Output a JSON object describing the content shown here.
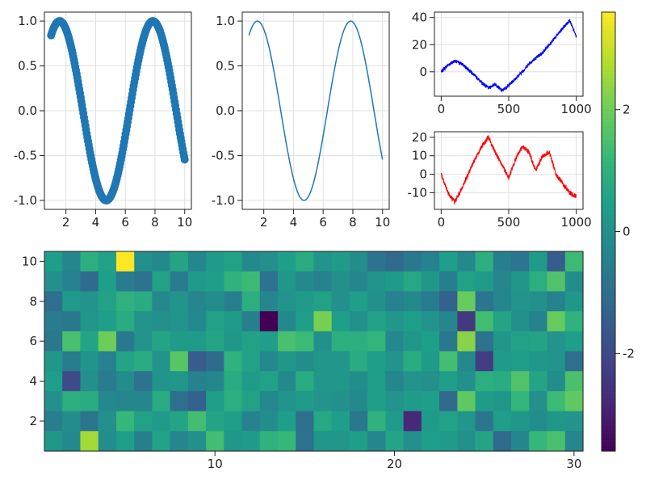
{
  "colors": {
    "scatter": "#1f77b4",
    "line": "#1f77b4",
    "walk_top": "#0000ff",
    "walk_bottom": "#ff0000",
    "grid": "#e0e0e0",
    "colormap": "viridis"
  },
  "chart_data": [
    {
      "id": "scatter-sine",
      "type": "scatter",
      "function": "sin(x)",
      "x_range": [
        1,
        10
      ],
      "n_points": 200,
      "xlim": [
        0.55,
        10.45
      ],
      "ylim": [
        -1.1,
        1.1
      ],
      "xticks": [
        2,
        4,
        6,
        8,
        10
      ],
      "yticks": [
        -1.0,
        -0.5,
        0.0,
        0.5,
        1.0
      ],
      "xtick_labels": [
        "2",
        "4",
        "6",
        "8",
        "10"
      ],
      "ytick_labels": [
        "-1.0",
        "-0.5",
        "0.0",
        "0.5",
        "1.0"
      ],
      "grid": true
    },
    {
      "id": "line-sine",
      "type": "line",
      "function": "sin(x)",
      "x_range": [
        1,
        10
      ],
      "n_points": 200,
      "xlim": [
        0.55,
        10.45
      ],
      "ylim": [
        -1.1,
        1.1
      ],
      "xticks": [
        2,
        4,
        6,
        8,
        10
      ],
      "yticks": [
        -1.0,
        -0.5,
        0.0,
        0.5,
        1.0
      ],
      "xtick_labels": [
        "2",
        "4",
        "6",
        "8",
        "10"
      ],
      "ytick_labels": [
        "-1.0",
        "-0.5",
        "0.0",
        "0.5",
        "1.0"
      ],
      "grid": true
    },
    {
      "id": "random-walk-blue",
      "type": "line",
      "n_points": 1000,
      "x": [
        0,
        50,
        100,
        150,
        200,
        250,
        300,
        350,
        400,
        450,
        500,
        550,
        600,
        650,
        700,
        750,
        800,
        850,
        900,
        950,
        1000
      ],
      "y": [
        0,
        5,
        8,
        6,
        2,
        -3,
        -8,
        -12,
        -9,
        -14,
        -10,
        -5,
        0,
        6,
        10,
        14,
        20,
        26,
        32,
        38,
        26
      ],
      "xlim": [
        -50,
        1050
      ],
      "ylim": [
        -18,
        44
      ],
      "xticks": [
        0,
        500,
        1000
      ],
      "yticks": [
        0,
        20,
        40
      ],
      "xtick_labels": [
        "0",
        "500",
        "1000"
      ],
      "ytick_labels": [
        "0",
        "20",
        "40"
      ],
      "grid": true
    },
    {
      "id": "random-walk-red",
      "type": "line",
      "n_points": 1000,
      "x": [
        0,
        50,
        100,
        150,
        200,
        250,
        300,
        350,
        400,
        450,
        500,
        550,
        600,
        650,
        700,
        750,
        800,
        850,
        900,
        950,
        1000
      ],
      "y": [
        0,
        -10,
        -15,
        -8,
        0,
        8,
        15,
        20,
        12,
        5,
        -2,
        8,
        15,
        12,
        2,
        10,
        12,
        0,
        -5,
        -10,
        -12
      ],
      "xlim": [
        -50,
        1050
      ],
      "ylim": [
        -19,
        23
      ],
      "xticks": [
        0,
        500,
        1000
      ],
      "yticks": [
        -10,
        0,
        10,
        20
      ],
      "xtick_labels": [
        "0",
        "500",
        "1000"
      ],
      "ytick_labels": [
        "-10",
        "0",
        "10",
        "20"
      ],
      "grid": true
    },
    {
      "id": "heatmap",
      "type": "heatmap",
      "n_cols": 30,
      "n_rows": 10,
      "xlim": [
        0.5,
        30.5
      ],
      "ylim": [
        0.5,
        10.5
      ],
      "xticks": [
        10,
        20,
        30
      ],
      "yticks": [
        2,
        4,
        6,
        8,
        10
      ],
      "xtick_labels": [
        "10",
        "20",
        "30"
      ],
      "ytick_labels": [
        "2",
        "4",
        "6",
        "8",
        "10"
      ],
      "value_range": [
        -3.6,
        3.6
      ],
      "values_rows_top_to_bottom": [
        [
          0.4,
          -0.3,
          0.9,
          0.5,
          3.6,
          0.0,
          -0.2,
          0.6,
          -0.3,
          0.3,
          0.5,
          -0.2,
          0.0,
          0.4,
          0.8,
          0.1,
          0.3,
          -0.1,
          -0.9,
          -1.1,
          -0.7,
          -0.4,
          0.4,
          -0.2,
          0.9,
          -0.5,
          -0.8,
          0.3,
          -1.5,
          1.3
        ],
        [
          0.0,
          -0.4,
          -1.1,
          0.4,
          -0.6,
          -0.9,
          0.5,
          -0.6,
          0.3,
          0.4,
          1.0,
          1.3,
          -0.9,
          0.2,
          -0.2,
          -0.4,
          0.0,
          -0.3,
          0.1,
          0.3,
          0.7,
          0.2,
          -0.5,
          0.5,
          0.3,
          -0.3,
          0.2,
          0.9,
          1.6,
          -0.1
        ],
        [
          -1.0,
          0.3,
          0.1,
          0.5,
          1.0,
          0.8,
          -0.2,
          0.1,
          -0.3,
          -0.1,
          -0.5,
          0.9,
          -0.3,
          0.1,
          0.3,
          0.5,
          0.0,
          0.4,
          0.0,
          -0.4,
          -0.2,
          -0.6,
          -1.4,
          1.9,
          -0.8,
          -0.3,
          0.1,
          0.0,
          -0.4,
          0.2
        ],
        [
          -0.6,
          -0.7,
          0.2,
          0.4,
          0.8,
          0.1,
          0.0,
          0.1,
          -0.2,
          0.5,
          0.3,
          -0.5,
          -3.6,
          -0.2,
          0.4,
          2.1,
          0.4,
          0.0,
          0.5,
          0.2,
          0.4,
          0.1,
          -0.3,
          -2.4,
          1.4,
          0.6,
          0.0,
          -0.4,
          1.9,
          1.0
        ],
        [
          -0.7,
          1.5,
          0.6,
          2.0,
          -0.7,
          0.1,
          0.6,
          0.3,
          0.3,
          0.6,
          0.2,
          0.5,
          0.4,
          1.5,
          1.3,
          0.0,
          0.9,
          0.9,
          1.1,
          -0.2,
          0.2,
          0.4,
          -0.7,
          2.3,
          -0.9,
          0.2,
          0.5,
          0.6,
          0.1,
          0.4
        ],
        [
          0.2,
          -0.6,
          0.1,
          -0.4,
          0.6,
          0.8,
          0.1,
          1.7,
          -1.5,
          -1.1,
          1.0,
          0.5,
          -0.2,
          0.2,
          -0.1,
          0.2,
          0.2,
          0.8,
          0.4,
          0.1,
          0.8,
          0.3,
          1.4,
          -0.2,
          -2.3,
          0.3,
          0.4,
          0.2,
          0.1,
          -1.0
        ],
        [
          0.4,
          -2.0,
          0.0,
          -0.6,
          -0.1,
          -0.9,
          0.1,
          0.2,
          -0.4,
          -0.3,
          0.8,
          0.3,
          0.5,
          -0.2,
          0.8,
          0.2,
          0.2,
          -0.1,
          0.4,
          -0.3,
          0.1,
          0.0,
          0.4,
          0.0,
          0.9,
          0.8,
          1.6,
          0.6,
          -0.1,
          1.5
        ],
        [
          0.0,
          0.9,
          0.8,
          -0.2,
          -0.3,
          -0.3,
          0.8,
          -1.0,
          -1.4,
          0.4,
          0.9,
          0.5,
          -0.2,
          0.1,
          0.3,
          0.1,
          0.0,
          -0.2,
          0.4,
          0.1,
          0.3,
          0.4,
          -1.1,
          1.8,
          0.3,
          0.2,
          1.1,
          0.0,
          1.3,
          1.8
        ],
        [
          -0.5,
          -0.1,
          -0.8,
          0.0,
          1.2,
          0.5,
          0.3,
          0.6,
          1.4,
          0.6,
          0.4,
          -0.4,
          -0.1,
          0.4,
          -1.0,
          0.7,
          0.4,
          -0.7,
          1.0,
          0.3,
          -2.8,
          0.3,
          0.5,
          0.2,
          -0.8,
          0.4,
          0.2,
          -0.1,
          0.2,
          0.1
        ],
        [
          0.2,
          -0.2,
          2.6,
          -0.1,
          0.4,
          -0.5,
          0.5,
          -0.3,
          0.0,
          1.4,
          0.2,
          0.3,
          1.0,
          1.2,
          -0.9,
          0.2,
          0.2,
          0.4,
          -0.3,
          0.6,
          0.0,
          0.4,
          0.3,
          0.0,
          0.6,
          -1.1,
          -0.3,
          1.2,
          1.5,
          -0.3
        ]
      ]
    },
    {
      "id": "colorbar",
      "type": "colorbar",
      "colormap": "viridis",
      "range": [
        -3.6,
        3.6
      ],
      "ticks": [
        -2,
        0,
        2
      ],
      "tick_labels": [
        "-2",
        "0",
        "2"
      ]
    }
  ]
}
